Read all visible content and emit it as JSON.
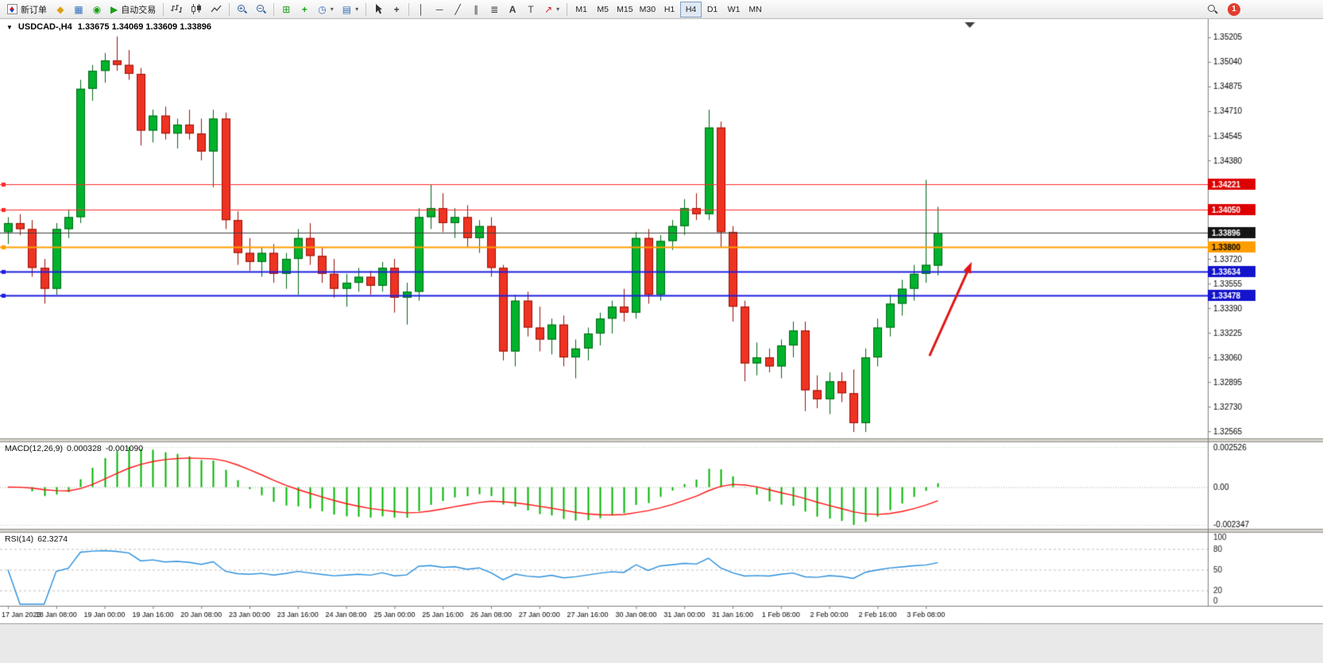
{
  "toolbar": {
    "new_order_label": "新订单",
    "autotrading_label": "自动交易",
    "timeframes": {
      "items": [
        "M1",
        "M5",
        "M15",
        "M30",
        "H1",
        "H4",
        "D1",
        "W1",
        "MN"
      ],
      "active": "H4"
    },
    "notification_count": "1",
    "glyphs": {
      "diamond": "◆",
      "chart_window": "▦",
      "navigator": "◉",
      "play": "▶",
      "tile": "⊞",
      "indicator_plus": "+",
      "clock": "◷",
      "template": "▤",
      "caret": "▾",
      "crosshair": "+",
      "vline": "│",
      "hline": "─",
      "trendline": "╱",
      "channel": "∥",
      "fibonacci": "≣",
      "text_a": "A",
      "text_t": "T",
      "arrow": "↗",
      "zoom_in": "+",
      "zoom_out": "−"
    }
  },
  "chart": {
    "dropdown_glyph": "▼",
    "symbol_period": "USDCAD-,H4",
    "ohlc": "1.33675 1.34069 1.33609 1.33896"
  },
  "macd_panel": {
    "name": "MACD(12,26,9)",
    "value_main": "0.000328",
    "value_signal": "-0.001090",
    "axis_labels": [
      "0.002526",
      "0.00",
      "-0.002347"
    ]
  },
  "rsi_panel": {
    "name": "RSI(14)",
    "value": "62.3274",
    "axis": [
      {
        "level": 100,
        "label": "100"
      },
      {
        "level": 80,
        "label": "80"
      },
      {
        "level": 50,
        "label": "50"
      },
      {
        "level": 20,
        "label": "20"
      },
      {
        "level": 0,
        "label": "0"
      }
    ],
    "level_lines": [
      80,
      50,
      20
    ]
  },
  "chart_data": {
    "type": "candlestick",
    "symbol": "USDCAD-",
    "timeframe": "H4",
    "current_candle": {
      "open": 1.33675,
      "high": 1.34069,
      "low": 1.33609,
      "close": 1.33896
    },
    "price_axis": {
      "min": 1.32518,
      "max": 1.35242,
      "ticks": [
        1.35205,
        1.3504,
        1.34875,
        1.3471,
        1.34545,
        1.3438,
        1.34215,
        1.3405,
        1.33885,
        1.3372,
        1.33555,
        1.3339,
        1.33225,
        1.3306,
        1.32895,
        1.3273,
        1.32565
      ]
    },
    "candles": [
      [
        1.339,
        1.34,
        1.3382,
        1.3396
      ],
      [
        1.3396,
        1.3402,
        1.3388,
        1.3392
      ],
      [
        1.3392,
        1.3398,
        1.336,
        1.3366
      ],
      [
        1.3366,
        1.3372,
        1.3342,
        1.3352
      ],
      [
        1.3352,
        1.3396,
        1.3348,
        1.3392
      ],
      [
        1.3392,
        1.3405,
        1.3386,
        1.34
      ],
      [
        1.34,
        1.3492,
        1.3396,
        1.3486
      ],
      [
        1.3486,
        1.3502,
        1.3478,
        1.3498
      ],
      [
        1.3498,
        1.351,
        1.349,
        1.3505
      ],
      [
        1.3505,
        1.3521,
        1.3498,
        1.3502
      ],
      [
        1.3502,
        1.3512,
        1.3492,
        1.3496
      ],
      [
        1.3496,
        1.35,
        1.3448,
        1.3458
      ],
      [
        1.3458,
        1.3472,
        1.345,
        1.3468
      ],
      [
        1.3468,
        1.3474,
        1.3452,
        1.3456
      ],
      [
        1.3456,
        1.3466,
        1.3446,
        1.3462
      ],
      [
        1.3462,
        1.3472,
        1.3452,
        1.3456
      ],
      [
        1.3456,
        1.3466,
        1.3438,
        1.3444
      ],
      [
        1.3444,
        1.3472,
        1.342,
        1.3466
      ],
      [
        1.3466,
        1.347,
        1.3392,
        1.3398
      ],
      [
        1.3398,
        1.3404,
        1.3368,
        1.3376
      ],
      [
        1.3376,
        1.3386,
        1.3364,
        1.337
      ],
      [
        1.337,
        1.338,
        1.336,
        1.3376
      ],
      [
        1.3376,
        1.3382,
        1.3356,
        1.3362
      ],
      [
        1.3362,
        1.3376,
        1.3352,
        1.3372
      ],
      [
        1.3372,
        1.3392,
        1.3348,
        1.3386
      ],
      [
        1.3386,
        1.3396,
        1.3368,
        1.3374
      ],
      [
        1.3374,
        1.338,
        1.3356,
        1.3362
      ],
      [
        1.3362,
        1.3372,
        1.3346,
        1.3352
      ],
      [
        1.3352,
        1.3362,
        1.334,
        1.3356
      ],
      [
        1.3356,
        1.3366,
        1.335,
        1.336
      ],
      [
        1.336,
        1.3364,
        1.3348,
        1.3354
      ],
      [
        1.3354,
        1.337,
        1.335,
        1.3366
      ],
      [
        1.3366,
        1.3372,
        1.3336,
        1.3346
      ],
      [
        1.3346,
        1.3356,
        1.3328,
        1.335
      ],
      [
        1.335,
        1.3406,
        1.3344,
        1.34
      ],
      [
        1.34,
        1.3422,
        1.3392,
        1.3406
      ],
      [
        1.3406,
        1.3416,
        1.339,
        1.3396
      ],
      [
        1.3396,
        1.3406,
        1.3386,
        1.34
      ],
      [
        1.34,
        1.3408,
        1.338,
        1.3386
      ],
      [
        1.3386,
        1.3398,
        1.3376,
        1.3394
      ],
      [
        1.3394,
        1.34,
        1.336,
        1.3366
      ],
      [
        1.3366,
        1.3368,
        1.3304,
        1.331
      ],
      [
        1.331,
        1.3348,
        1.33,
        1.3344
      ],
      [
        1.3344,
        1.335,
        1.332,
        1.3326
      ],
      [
        1.3326,
        1.334,
        1.331,
        1.3318
      ],
      [
        1.3318,
        1.3332,
        1.3308,
        1.3328
      ],
      [
        1.3328,
        1.3334,
        1.33,
        1.3306
      ],
      [
        1.3306,
        1.3318,
        1.3292,
        1.3312
      ],
      [
        1.3312,
        1.3326,
        1.3304,
        1.3322
      ],
      [
        1.3322,
        1.3336,
        1.3314,
        1.3332
      ],
      [
        1.3332,
        1.3344,
        1.3322,
        1.334
      ],
      [
        1.334,
        1.3352,
        1.333,
        1.3336
      ],
      [
        1.3336,
        1.339,
        1.3332,
        1.3386
      ],
      [
        1.3386,
        1.3392,
        1.3342,
        1.3348
      ],
      [
        1.3348,
        1.3388,
        1.3344,
        1.3384
      ],
      [
        1.3384,
        1.3398,
        1.3378,
        1.3394
      ],
      [
        1.3394,
        1.3412,
        1.3388,
        1.3406
      ],
      [
        1.3406,
        1.3416,
        1.3398,
        1.3402
      ],
      [
        1.3402,
        1.3472,
        1.3398,
        1.346
      ],
      [
        1.346,
        1.3464,
        1.338,
        1.339
      ],
      [
        1.339,
        1.3394,
        1.333,
        1.334
      ],
      [
        1.334,
        1.3344,
        1.329,
        1.3302
      ],
      [
        1.3302,
        1.3316,
        1.3294,
        1.3306
      ],
      [
        1.3306,
        1.3312,
        1.3296,
        1.33
      ],
      [
        1.33,
        1.3318,
        1.3292,
        1.3314
      ],
      [
        1.3314,
        1.333,
        1.3306,
        1.3324
      ],
      [
        1.3324,
        1.333,
        1.327,
        1.3284
      ],
      [
        1.3284,
        1.3294,
        1.3272,
        1.3278
      ],
      [
        1.3278,
        1.3296,
        1.3268,
        1.329
      ],
      [
        1.329,
        1.3296,
        1.3276,
        1.3282
      ],
      [
        1.3282,
        1.3298,
        1.3256,
        1.3262
      ],
      [
        1.3262,
        1.3312,
        1.3256,
        1.3306
      ],
      [
        1.3306,
        1.3332,
        1.33,
        1.3326
      ],
      [
        1.3326,
        1.3348,
        1.332,
        1.3342
      ],
      [
        1.3342,
        1.3358,
        1.3334,
        1.3352
      ],
      [
        1.3352,
        1.3368,
        1.3344,
        1.3362
      ],
      [
        1.3362,
        1.3425,
        1.3356,
        1.3368
      ],
      [
        1.33675,
        1.34069,
        1.33609,
        1.33896
      ]
    ],
    "time_labels": [
      "17 Jan 2023",
      "18 Jan 08:00",
      "19 Jan 00:00",
      "19 Jan 16:00",
      "20 Jan 08:00",
      "23 Jan 00:00",
      "23 Jan 16:00",
      "24 Jan 08:00",
      "25 Jan 00:00",
      "25 Jan 16:00",
      "26 Jan 08:00",
      "27 Jan 00:00",
      "27 Jan 16:00",
      "30 Jan 08:00",
      "31 Jan 00:00",
      "31 Jan 16:00",
      "1 Feb 08:00",
      "2 Feb 00:00",
      "2 Feb 16:00",
      "3 Feb 08:00"
    ],
    "label_step": 4,
    "hlines": [
      {
        "price": 1.34221,
        "color": "#ff2a2a",
        "width": 1,
        "label": "1.34221",
        "box": "#dd0000",
        "text": "#ffffff"
      },
      {
        "price": 1.3405,
        "color": "#ff2a2a",
        "width": 1,
        "label": "1.34050",
        "box": "#dd0000",
        "text": "#ffffff"
      },
      {
        "price": 1.338,
        "color": "#ff9e00",
        "width": 2,
        "label": "1.33800",
        "box": "#ff9e00",
        "text": "#000000"
      },
      {
        "price": 1.33634,
        "color": "#1f1fe0",
        "width": 2,
        "label": "1.33634",
        "box": "#1414cc",
        "text": "#ffffff"
      },
      {
        "price": 1.33478,
        "color": "#1f1fe0",
        "width": 2,
        "label": "1.33478",
        "box": "#1414cc",
        "text": "#ffffff"
      }
    ],
    "bid_line": {
      "price": 1.33896,
      "color": "#3f3f3f",
      "width": 1,
      "label": "1.33896",
      "box": "#141414",
      "text": "#ffffff"
    },
    "arrow_annotation": {
      "from": {
        "index": 76.3,
        "price": 1.3307
      },
      "to": {
        "index": 79.8,
        "price": 1.337
      },
      "color": "#e01414"
    },
    "colors": {
      "up": "#00b32c",
      "up_border": "#006616",
      "down": "#ee3322",
      "down_border": "#991108",
      "bg": "#ffffff"
    },
    "indicators": {
      "macd": {
        "fast": 12,
        "slow": 26,
        "signal": 9,
        "histogram_color": "#00b400",
        "signal_color": "#ff1414"
      },
      "rsi": {
        "period": 14,
        "line_color": "#2a8fdd"
      }
    }
  }
}
